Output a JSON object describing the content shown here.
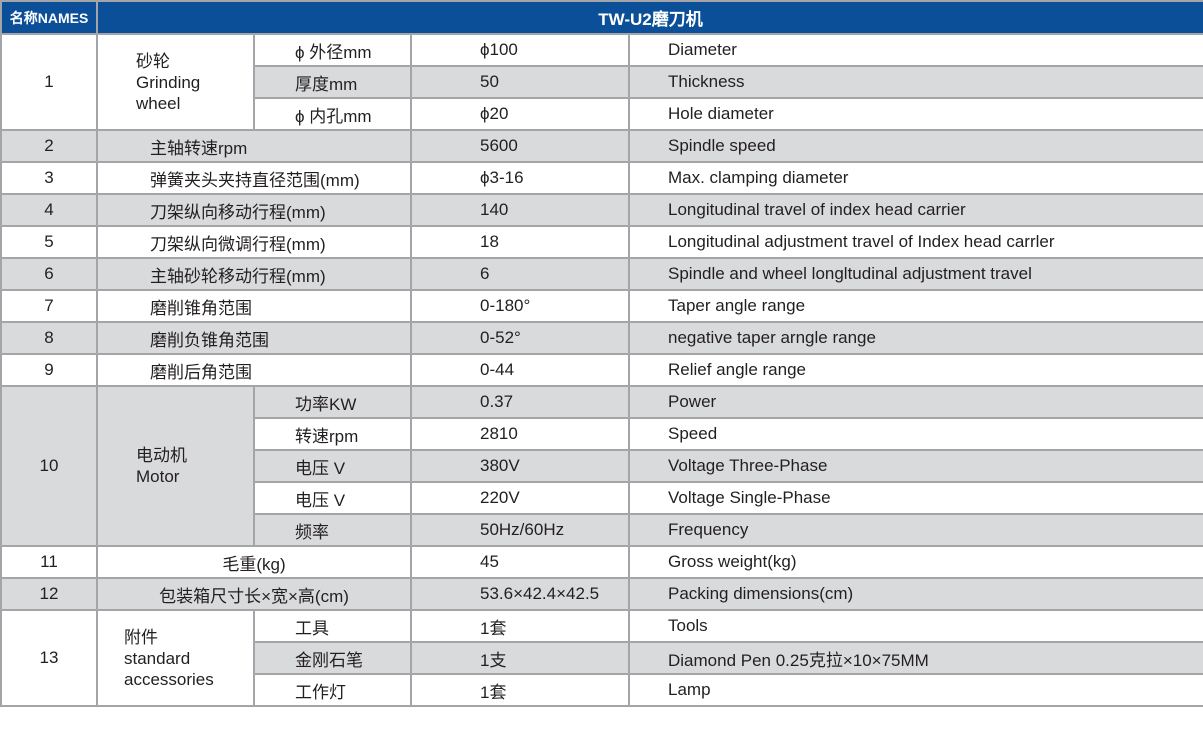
{
  "header": {
    "names_label": "名称NAMES",
    "title": "TW-U2磨刀机"
  },
  "colors": {
    "header_bg": "#0a4f97",
    "shade": "#d9dadc",
    "border": "#a3a5a8"
  },
  "rows": [
    {
      "no": "1",
      "group": [
        "砂轮",
        "Grinding",
        "wheel"
      ],
      "items": [
        {
          "label": "ϕ 外径mm",
          "value": "ϕ100",
          "en": "Diameter"
        },
        {
          "label": "厚度mm",
          "value": "50",
          "en": "Thickness"
        },
        {
          "label": "ϕ 内孔mm",
          "value": "ϕ20",
          "en": "Hole diameter"
        }
      ]
    },
    {
      "no": "2",
      "name": "主轴转速rpm",
      "value": "5600",
      "en": "Spindle speed"
    },
    {
      "no": "3",
      "name": "弹簧夹头夹持直径范围(mm)",
      "value": "ϕ3-16",
      "en": "Max. clamping diameter"
    },
    {
      "no": "4",
      "name": "刀架纵向移动行程(mm)",
      "value": "140",
      "en": "Longitudinal travel of index head carrier"
    },
    {
      "no": "5",
      "name": "刀架纵向微调行程(mm)",
      "value": "18",
      "en": "Longitudinal adjustment  travel of Index head carrler"
    },
    {
      "no": "6",
      "name": "主轴砂轮移动行程(mm)",
      "value": "6",
      "en": "Spindle and wheel longltudinal adjustment  travel"
    },
    {
      "no": "7",
      "name": "磨削锥角范围",
      "value": "0-180°",
      "en": "Taper angle range"
    },
    {
      "no": "8",
      "name": "磨削负锥角范围",
      "value": "0-52°",
      "en": "negative taper arngle range"
    },
    {
      "no": "9",
      "name": "磨削后角范围",
      "value": "0-44",
      "en": "Relief angle range"
    },
    {
      "no": "10",
      "group": [
        "电动机",
        "Motor"
      ],
      "items": [
        {
          "label": "功率KW",
          "value": "0.37",
          "en": "Power"
        },
        {
          "label": "转速rpm",
          "value": "2810",
          "en": "Speed"
        },
        {
          "label": "电压 V",
          "value": "380V",
          "en": "Voltage Three-Phase"
        },
        {
          "label": "电压 V",
          "value": "220V",
          "en": "Voltage Single-Phase"
        },
        {
          "label": "频率",
          "value": "50Hz/60Hz",
          "en": "Frequency"
        }
      ]
    },
    {
      "no": "11",
      "name": "毛重(kg)",
      "centered": true,
      "value": "45",
      "en": "Gross weight(kg)"
    },
    {
      "no": "12",
      "name": "包装箱尺寸长×宽×高(cm)",
      "centered": true,
      "value": "53.6×42.4×42.5",
      "en": "Packing dimensions(cm)"
    },
    {
      "no": "13",
      "group": [
        "附件",
        "standard",
        "accessories"
      ],
      "groupStyle": "left",
      "items": [
        {
          "label": "工具",
          "value": "1套",
          "en": "Tools"
        },
        {
          "label": "金刚石笔",
          "value": "1支",
          "en": "Diamond Pen 0.25克拉×10×75MM"
        },
        {
          "label": "工作灯",
          "value": "1套",
          "en": "Lamp"
        }
      ]
    }
  ]
}
